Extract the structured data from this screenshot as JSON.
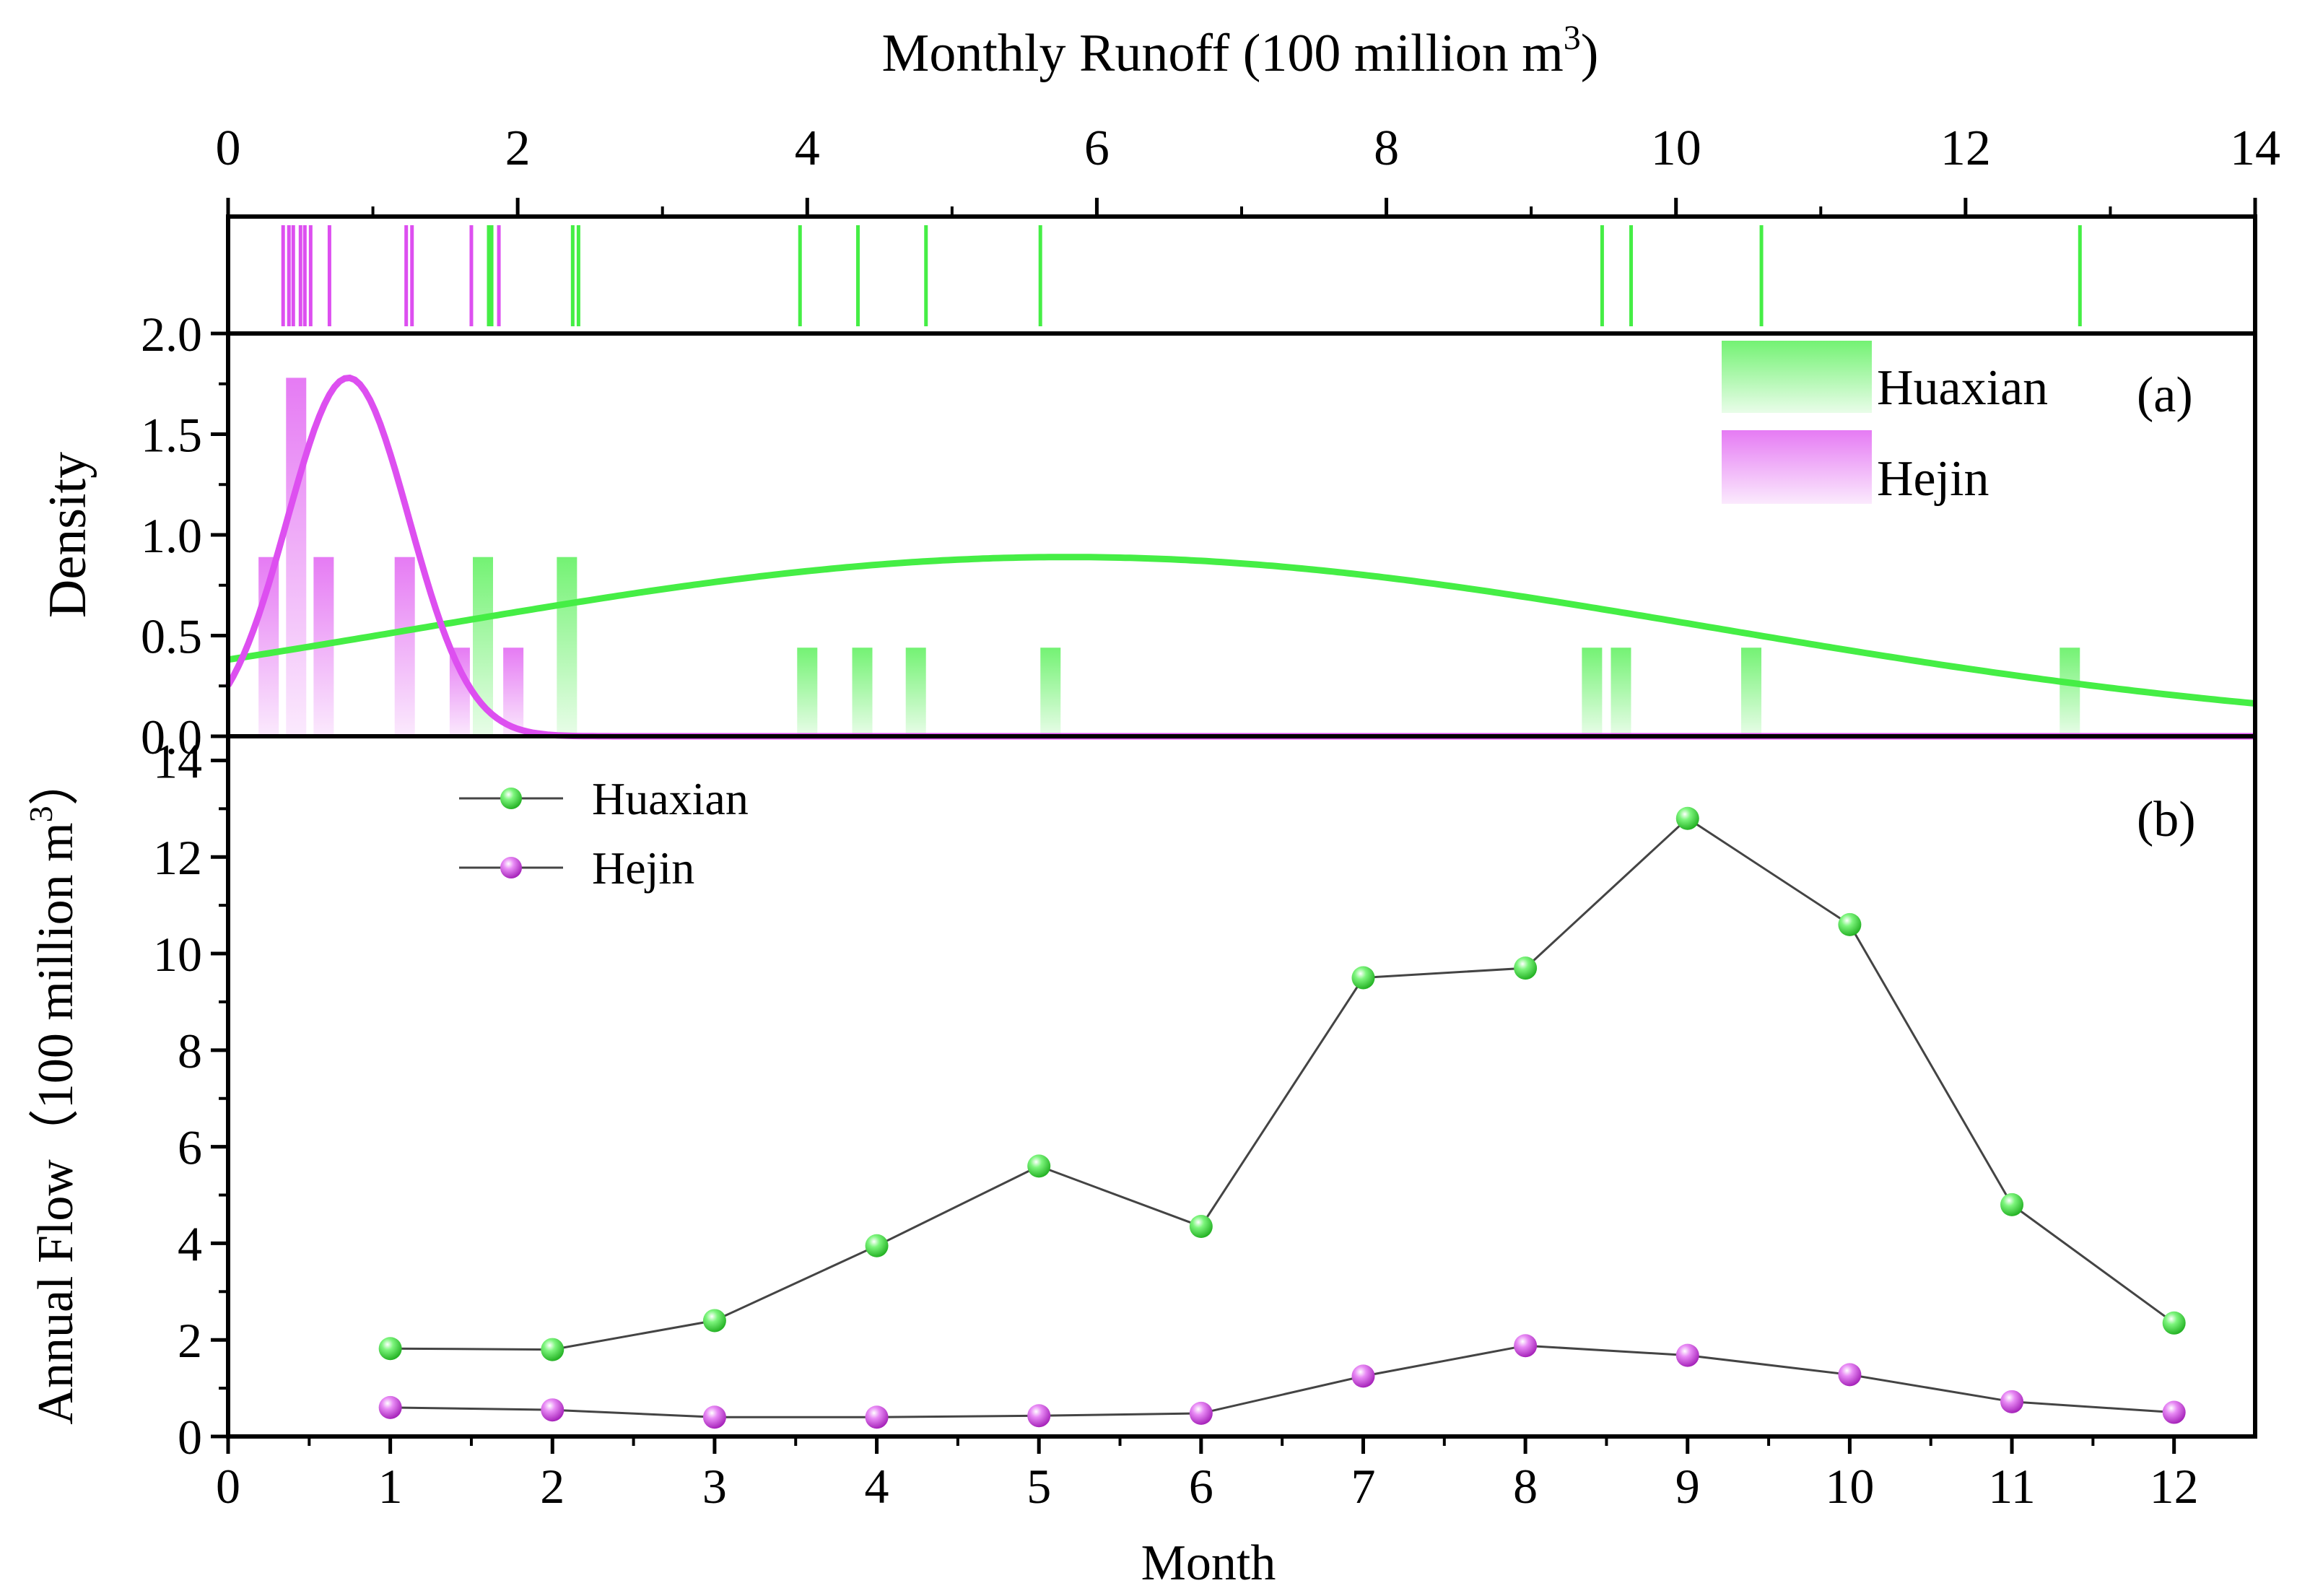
{
  "colors": {
    "huaxian": "#45ee45",
    "hejin": "#dd4ff0",
    "connector": "#444444",
    "axis": "#000000"
  },
  "chart_data": [
    {
      "panel": "top-rug",
      "type": "rug",
      "title": "Monthly Runoff (100 million m",
      "title_sup": "3",
      "title_close": ")",
      "x_ticks": [
        "0",
        "2",
        "4",
        "6",
        "8",
        "10",
        "12",
        "14"
      ],
      "xlim": [
        0,
        14
      ],
      "series": [
        {
          "name": "Hejin",
          "values": [
            0.38,
            0.42,
            0.45,
            0.5,
            0.53,
            0.57,
            0.7,
            1.23,
            1.27,
            1.68,
            1.8,
            1.87
          ]
        },
        {
          "name": "Huaxian",
          "values": [
            1.8,
            1.82,
            2.38,
            2.42,
            3.95,
            4.35,
            4.82,
            5.61,
            9.49,
            9.69,
            10.59,
            12.79
          ]
        }
      ]
    },
    {
      "panel": "a",
      "type": "histogram+density",
      "label": "(a)",
      "ylabel": "Density",
      "y_ticks": [
        "0.0",
        "0.5",
        "1.0",
        "1.5",
        "2.0"
      ],
      "ylim": [
        0,
        2.0
      ],
      "xlim": [
        0,
        14
      ],
      "legend_position": "top-right",
      "series": [
        {
          "name": "Huaxian",
          "bins": [
            {
              "center": 1.76,
              "density": 0.89
            },
            {
              "center": 2.34,
              "density": 0.89
            },
            {
              "center": 4.0,
              "density": 0.44
            },
            {
              "center": 4.38,
              "density": 0.44
            },
            {
              "center": 4.75,
              "density": 0.44
            },
            {
              "center": 5.68,
              "density": 0.44
            },
            {
              "center": 9.42,
              "density": 0.44
            },
            {
              "center": 9.62,
              "density": 0.44
            },
            {
              "center": 10.52,
              "density": 0.44
            },
            {
              "center": 12.72,
              "density": 0.44
            }
          ],
          "fit": {
            "kind": "normal",
            "mean": 5.8,
            "sd": 4.45,
            "peak_density": 0.89
          }
        },
        {
          "name": "Hejin",
          "bins": [
            {
              "center": 0.28,
              "density": 0.89
            },
            {
              "center": 0.47,
              "density": 1.78
            },
            {
              "center": 0.66,
              "density": 0.89
            },
            {
              "center": 1.22,
              "density": 0.89
            },
            {
              "center": 1.6,
              "density": 0.44
            },
            {
              "center": 1.97,
              "density": 0.44
            }
          ],
          "fit": {
            "kind": "normal",
            "mean": 0.83,
            "sd": 0.42,
            "peak_density": 1.78
          }
        }
      ]
    },
    {
      "panel": "b",
      "type": "line",
      "label": "(b)",
      "xlabel": "Month",
      "ylabel": "Annual Flow（100 million m",
      "ylabel_sup": "3",
      "ylabel_close": "）",
      "x": [
        1,
        2,
        3,
        4,
        5,
        6,
        7,
        8,
        9,
        10,
        11,
        12
      ],
      "x_ticks": [
        "0",
        "1",
        "2",
        "3",
        "4",
        "5",
        "6",
        "7",
        "8",
        "9",
        "10",
        "11",
        "12"
      ],
      "y_ticks": [
        "0",
        "2",
        "4",
        "6",
        "8",
        "10",
        "12",
        "14"
      ],
      "xlim": [
        0,
        12.5
      ],
      "ylim": [
        0,
        14.5
      ],
      "legend_position": "top-left",
      "series": [
        {
          "name": "Huaxian",
          "values": [
            1.82,
            1.8,
            2.4,
            3.95,
            5.6,
            4.35,
            9.5,
            9.7,
            12.8,
            10.6,
            4.8,
            2.35
          ]
        },
        {
          "name": "Hejin",
          "values": [
            0.6,
            0.55,
            0.4,
            0.4,
            0.43,
            0.48,
            1.25,
            1.88,
            1.68,
            1.28,
            0.72,
            0.5
          ]
        }
      ]
    }
  ]
}
